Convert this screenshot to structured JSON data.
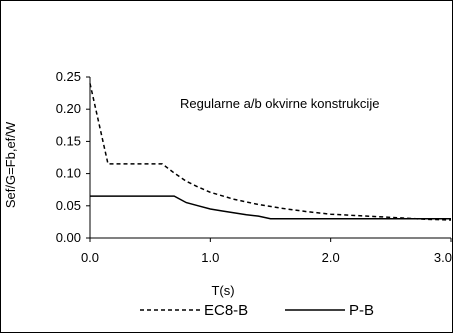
{
  "chart_data": {
    "type": "line",
    "annotation": "Regularne a/b okvirne konstrukcije",
    "xlabel": "T(s)",
    "ylabel": "Sef/G=Fb,ef/W",
    "xlim": [
      0.0,
      3.0
    ],
    "ylim": [
      0.0,
      0.25
    ],
    "x_ticks": [
      "0.0",
      "1.0",
      "2.0",
      "3.0"
    ],
    "y_ticks": [
      "0.00",
      "0.05",
      "0.10",
      "0.15",
      "0.20",
      "0.25"
    ],
    "grid": false,
    "legend_position": "bottom",
    "series": [
      {
        "name": "EC8-B",
        "line_style": "dashed",
        "color": "#000000",
        "x": [
          0.0,
          0.15,
          0.6,
          0.7,
          0.8,
          0.9,
          1.0,
          1.2,
          1.4,
          1.6,
          1.8,
          2.0,
          2.2,
          2.4,
          2.6,
          2.8,
          3.0
        ],
        "y": [
          0.24,
          0.115,
          0.115,
          0.101,
          0.088,
          0.079,
          0.071,
          0.06,
          0.052,
          0.046,
          0.041,
          0.037,
          0.035,
          0.033,
          0.031,
          0.029,
          0.028
        ]
      },
      {
        "name": "P-B",
        "line_style": "solid",
        "color": "#000000",
        "x": [
          0.0,
          0.7,
          0.8,
          0.9,
          1.0,
          1.1,
          1.2,
          1.3,
          1.4,
          1.5,
          3.0
        ],
        "y": [
          0.065,
          0.065,
          0.055,
          0.05,
          0.045,
          0.042,
          0.039,
          0.036,
          0.034,
          0.03,
          0.03
        ]
      }
    ]
  }
}
